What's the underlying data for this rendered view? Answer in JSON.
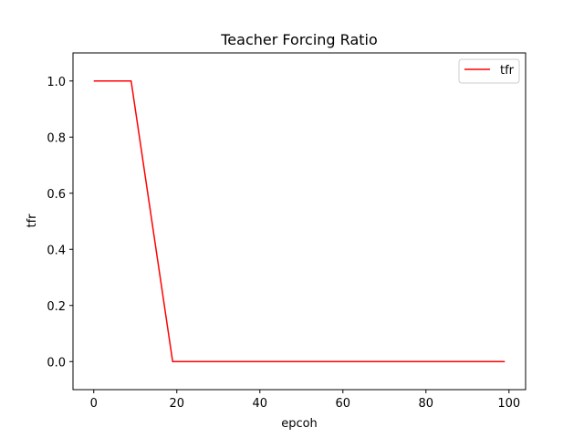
{
  "chart_data": {
    "type": "line",
    "title": "Teacher Forcing Ratio",
    "xlabel": "epcoh",
    "ylabel": "tfr",
    "xlim": [
      -5,
      104
    ],
    "ylim": [
      -0.1,
      1.1
    ],
    "x_ticks": [
      0,
      20,
      40,
      60,
      80,
      100
    ],
    "x_tick_labels": [
      "0",
      "20",
      "40",
      "60",
      "80",
      "100"
    ],
    "y_ticks": [
      0.0,
      0.2,
      0.4,
      0.6,
      0.8,
      1.0
    ],
    "y_tick_labels": [
      "0.0",
      "0.2",
      "0.4",
      "0.6",
      "0.8",
      "1.0"
    ],
    "grid": false,
    "legend_position": "top-right",
    "series": [
      {
        "name": "tfr",
        "color": "#ff0000",
        "x": [
          0,
          9,
          19,
          99
        ],
        "y": [
          1.0,
          1.0,
          0.0,
          0.0
        ]
      }
    ]
  }
}
